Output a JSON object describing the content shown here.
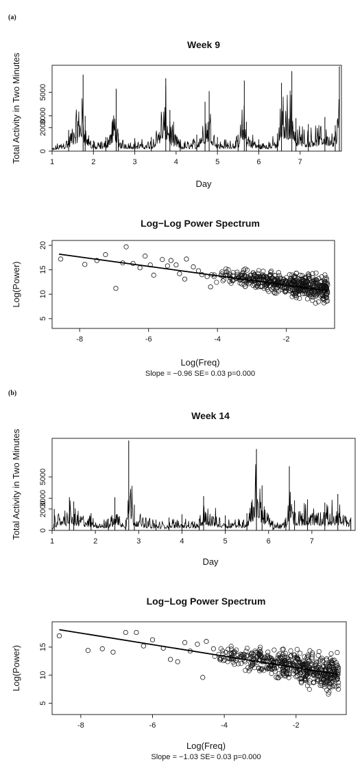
{
  "panels": [
    {
      "label": "(a)"
    },
    {
      "label": "(b)"
    }
  ],
  "chart_data": [
    {
      "type": "line",
      "title": "Week 9",
      "xlabel": "Day",
      "ylabel": "Total Activity in Two Minutes",
      "xticks": [
        "1",
        "2",
        "3",
        "4",
        "5",
        "6",
        "7"
      ],
      "yticks": [
        "0",
        "2000",
        "3000",
        "5000"
      ],
      "xlim": [
        1,
        8
      ],
      "ylim": [
        0,
        7300
      ],
      "series": [
        {
          "color": "#000000",
          "x": [
            1.0,
            1.4,
            1.75,
            1.8,
            2.0,
            2.3,
            2.55,
            2.6,
            3.0,
            3.4,
            3.75,
            3.85,
            4.1,
            4.5,
            4.7,
            4.8,
            5.0,
            5.5,
            5.65,
            5.7,
            6.0,
            6.45,
            6.55,
            6.8,
            6.9,
            7.2,
            7.6,
            7.85,
            7.95
          ],
          "y": [
            300,
            1800,
            6500,
            3000,
            900,
            1200,
            5300,
            1500,
            1100,
            1200,
            6200,
            3500,
            1000,
            1400,
            4200,
            5100,
            1200,
            1400,
            6000,
            2500,
            1000,
            1500,
            5800,
            6800,
            2800,
            2300,
            2900,
            2200,
            7200
          ]
        }
      ]
    },
    {
      "type": "scatter",
      "title": "Log−Log Power Spectrum",
      "xlabel": "Log(Freq)",
      "ylabel": "Log(Power)",
      "xticks": [
        "-8",
        "-6",
        "-4",
        "-2"
      ],
      "yticks": [
        "5",
        "10",
        "15",
        "20"
      ],
      "xlim": [
        -8.8,
        -0.6
      ],
      "ylim": [
        3,
        21
      ],
      "note": "Slope = −0.96 SE= 0.03 p=0.000",
      "fit": {
        "slope": -0.96,
        "x": [
          -8.6,
          -0.8
        ],
        "y": [
          18.2,
          10.7
        ]
      },
      "points": {
        "x": [
          -8.55,
          -7.85,
          -7.5,
          -7.25,
          -6.95,
          -6.75,
          -6.65,
          -6.45,
          -6.25,
          -6.1,
          -5.95,
          -5.85,
          -5.6,
          -5.45,
          -5.35,
          -5.2,
          -5.1,
          -4.95,
          -4.9,
          -4.7,
          -4.55,
          -4.45,
          -4.3,
          -4.2
        ],
        "y": [
          17.2,
          16.1,
          16.9,
          18.1,
          11.2,
          16.4,
          19.7,
          16.3,
          15.4,
          17.8,
          16.0,
          13.9,
          17.1,
          15.8,
          16.9,
          16.0,
          14.2,
          13.1,
          17.2,
          15.6,
          14.8,
          14.0,
          13.6,
          11.5
        ]
      },
      "scatter_cloud": {
        "x_from": -4.2,
        "x_to": -0.8,
        "y_at_start": 14.0,
        "y_at_end": 11.0,
        "spread": 2.2
      }
    },
    {
      "type": "line",
      "title": "Week 14",
      "xlabel": "Day",
      "ylabel": "Total Activity in Two Minutes",
      "xticks": [
        "1",
        "2",
        "3",
        "4",
        "5",
        "6",
        "7"
      ],
      "yticks": [
        "0",
        "2000",
        "3000",
        "5000"
      ],
      "xlim": [
        1,
        8
      ],
      "ylim": [
        0,
        8600
      ],
      "series": [
        {
          "color": "#000000",
          "x": [
            1.0,
            1.05,
            1.4,
            1.5,
            1.9,
            2.3,
            2.45,
            2.7,
            2.77,
            2.9,
            3.4,
            3.7,
            4.0,
            4.4,
            4.5,
            5.0,
            5.5,
            5.72,
            5.85,
            6.1,
            6.4,
            6.48,
            6.6,
            6.9,
            7.3,
            7.6,
            7.9
          ],
          "y": [
            200,
            2000,
            3100,
            2700,
            1600,
            1100,
            3100,
            1000,
            8400,
            2400,
            1000,
            1200,
            1500,
            1100,
            3200,
            1400,
            1600,
            7600,
            4200,
            900,
            1200,
            6000,
            2800,
            2900,
            2600,
            3400,
            1200
          ]
        }
      ]
    },
    {
      "type": "scatter",
      "title": "Log−Log Power Spectrum",
      "xlabel": "Log(Freq)",
      "ylabel": "Log(Power)",
      "xticks": [
        "-8",
        "-6",
        "-4",
        "-2"
      ],
      "yticks": [
        "5",
        "10",
        "15"
      ],
      "xlim": [
        -8.8,
        -0.6
      ],
      "ylim": [
        3,
        19.5
      ],
      "note": "Slope = −1.03 SE= 0.03 p=0.000",
      "fit": {
        "slope": -1.03,
        "x": [
          -8.6,
          -0.8
        ],
        "y": [
          18.1,
          10.1
        ]
      },
      "points": {
        "x": [
          -8.6,
          -7.8,
          -7.4,
          -7.1,
          -6.75,
          -6.45,
          -6.25,
          -6.0,
          -5.7,
          -5.5,
          -5.3,
          -5.1,
          -4.95,
          -4.75,
          -4.6,
          -4.5,
          -4.3
        ],
        "y": [
          17.0,
          14.4,
          14.7,
          14.1,
          17.6,
          17.6,
          15.2,
          16.3,
          14.8,
          12.8,
          12.4,
          15.8,
          14.3,
          15.5,
          9.6,
          16.0,
          14.7
        ]
      },
      "scatter_cloud": {
        "x_from": -4.3,
        "x_to": -0.8,
        "y_at_start": 14.0,
        "y_at_end": 10.2,
        "spread": 2.6
      }
    }
  ]
}
